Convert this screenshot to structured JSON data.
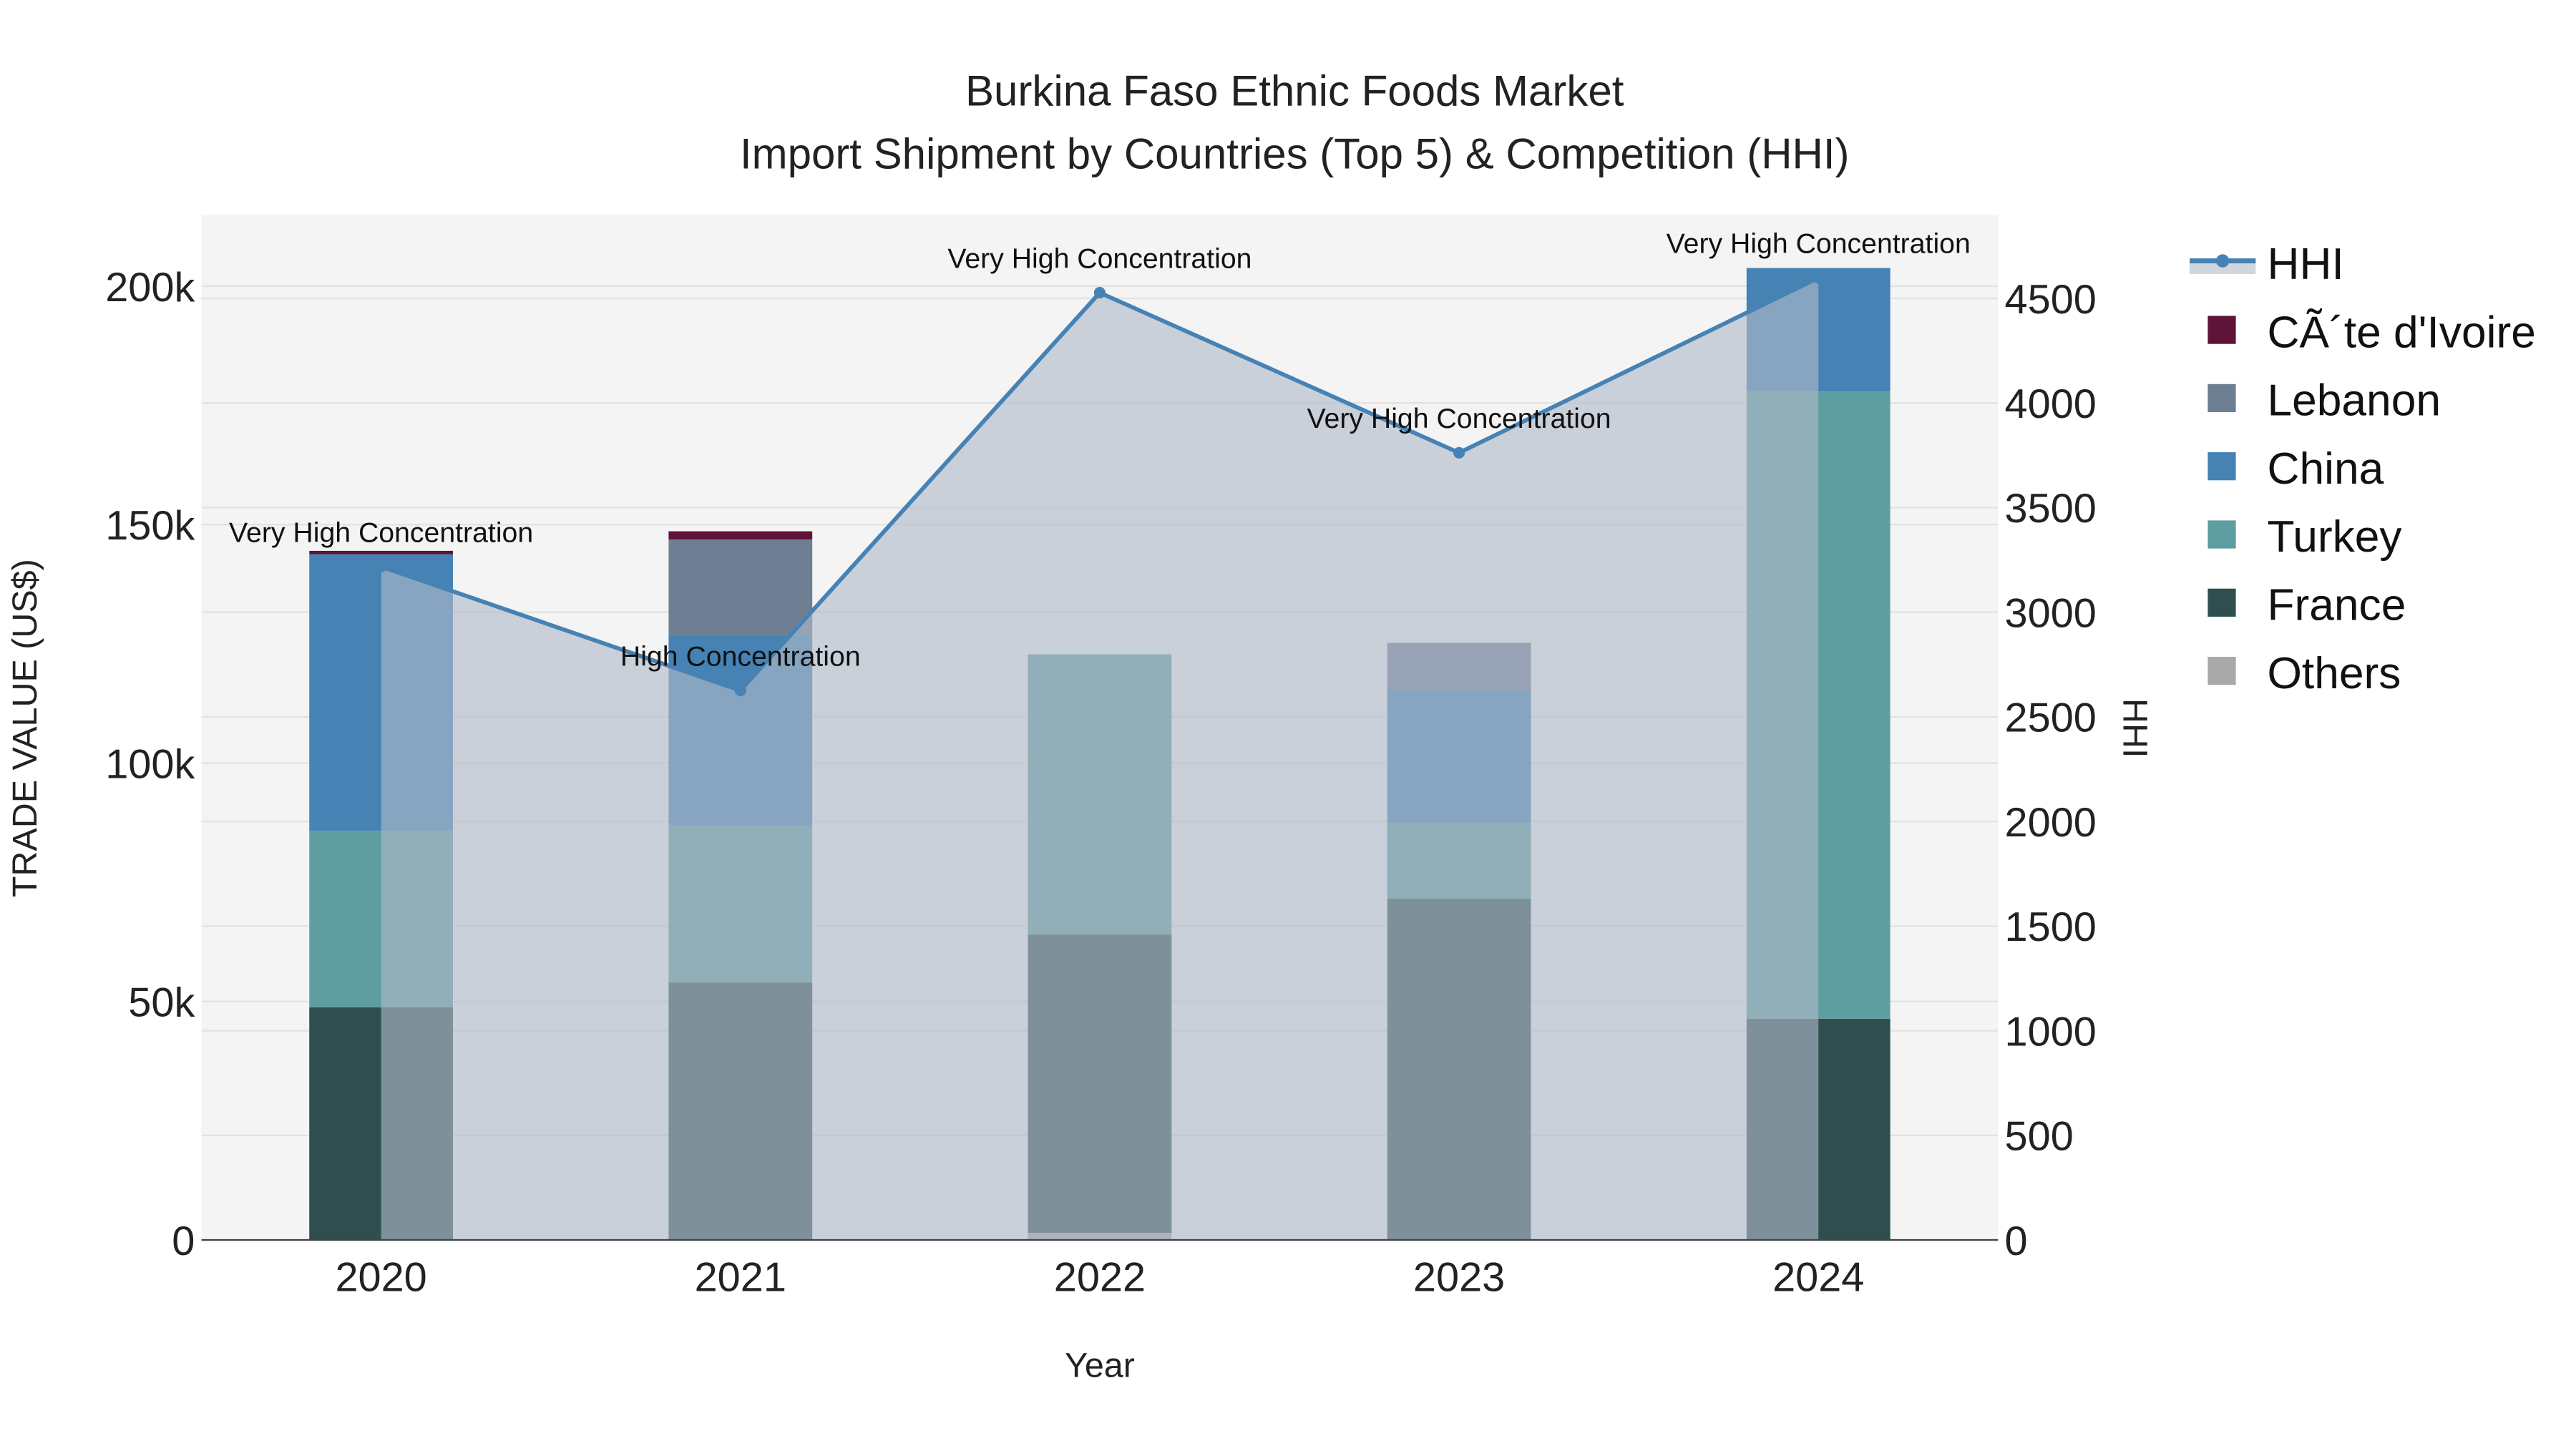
{
  "chart_data": {
    "type": "bar",
    "stacked": true,
    "title": "Burkina Faso Ethnic Foods Market",
    "subtitle": "Import Shipment by Countries (Top 5) & Competition (HHI)",
    "xlabel": "Year",
    "ylabel": "TRADE VALUE (US$)",
    "y2label": "HHI",
    "categories": [
      "2020",
      "2021",
      "2022",
      "2023",
      "2024"
    ],
    "ylim": [
      0,
      215000
    ],
    "y2lim": [
      0,
      4900
    ],
    "yticks": [
      0,
      50000,
      100000,
      150000,
      200000
    ],
    "ytick_labels": [
      "0",
      "50k",
      "100k",
      "150k",
      "200k"
    ],
    "y2ticks": [
      0,
      500,
      1000,
      1500,
      2000,
      2500,
      3000,
      3500,
      4000,
      4500
    ],
    "y2tick_labels": [
      "0",
      "500",
      "1000",
      "1500",
      "2000",
      "2500",
      "3000",
      "3500",
      "4000",
      "4500"
    ],
    "grid": true,
    "legend_position": "right",
    "series": [
      {
        "name": "Others",
        "color": "#a9a9a9",
        "values": [
          0,
          0,
          1500,
          0,
          0
        ]
      },
      {
        "name": "France",
        "color": "#2f4f4f",
        "values": [
          48800,
          54000,
          62500,
          71600,
          46400
        ]
      },
      {
        "name": "Turkey",
        "color": "#5f9ea0",
        "values": [
          37000,
          32900,
          58800,
          15900,
          131500
        ]
      },
      {
        "name": "China",
        "color": "#4682b4",
        "values": [
          58000,
          40000,
          0,
          27700,
          25900
        ]
      },
      {
        "name": "Lebanon",
        "color": "#6e7f93",
        "values": [
          0,
          20000,
          0,
          10000,
          0
        ]
      },
      {
        "name": "CÃ´te d'Ivoire",
        "color": "#5f1336",
        "values": [
          700,
          1700,
          0,
          0,
          0
        ]
      }
    ],
    "legend_order": [
      "HHI",
      "CÃ´te d'Ivoire",
      "Lebanon",
      "China",
      "Turkey",
      "France",
      "Others"
    ],
    "hhi": {
      "name": "HHI",
      "color": "#4682b4",
      "values": [
        3218,
        2626,
        4527,
        3762,
        4598
      ],
      "annotations": [
        "Very High Concentration",
        "High Concentration",
        "Very High Concentration",
        "Very High Concentration",
        "Very High Concentration"
      ]
    }
  }
}
